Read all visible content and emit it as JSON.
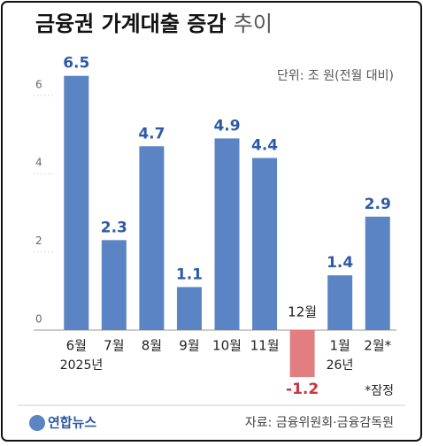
{
  "chart_data": {
    "type": "bar",
    "title": "금융권 가계대출 증감",
    "title_suffix": "추이",
    "unit": "단위: 조 원(전월 대비)",
    "categories": [
      "6월",
      "7월",
      "8월",
      "9월",
      "10월",
      "11월",
      "12월",
      "1월",
      "2월*"
    ],
    "values": [
      6.5,
      2.3,
      4.7,
      1.1,
      4.9,
      4.4,
      -1.2,
      1.4,
      2.9
    ],
    "color": "#5b84c4",
    "negative_color": "#e37e80",
    "ylim": [
      -1.5,
      7
    ],
    "yticks": [
      0,
      2,
      4,
      6
    ],
    "grid": false,
    "year_labels": [
      "2025년",
      "26년"
    ],
    "note": "*잠정",
    "source": "자료: 금융위원회·금융감독원",
    "logo": "연합뉴스"
  }
}
